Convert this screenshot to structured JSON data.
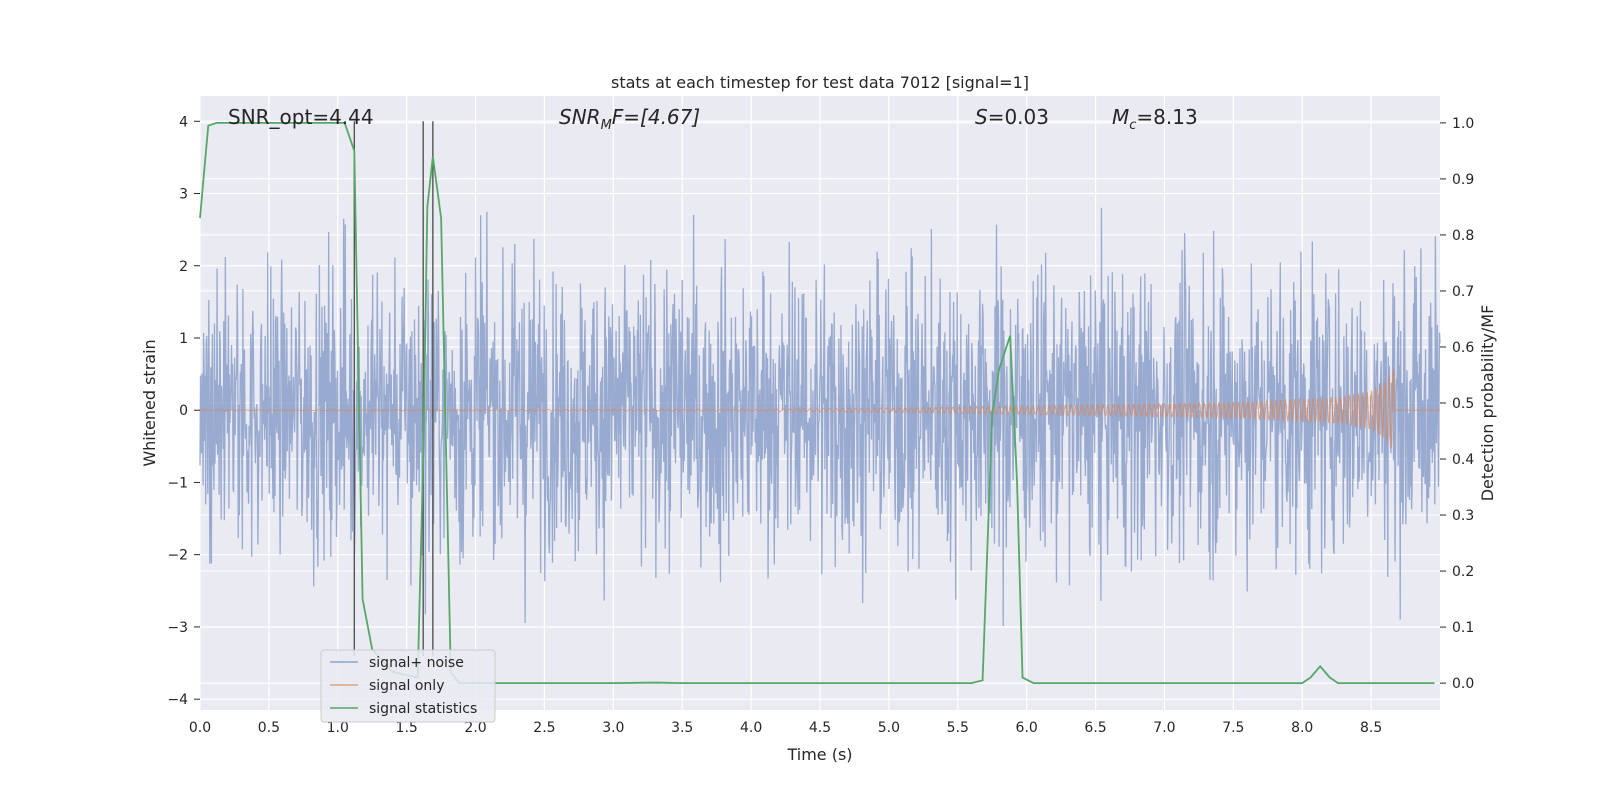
{
  "chart_data": {
    "type": "line",
    "title": "stats at each timestep for test data 7012 [signal=1]",
    "xlabel": "Time (s)",
    "ylabel_left": "Whitened strain",
    "ylabel_right": "Detection probability/MF",
    "xlim": [
      0.0,
      9.0
    ],
    "ylim_left": [
      -4.15,
      4.35
    ],
    "ylim_right": [
      -0.048,
      1.048
    ],
    "x_ticks": [
      "0.0",
      "0.5",
      "1.0",
      "1.5",
      "2.0",
      "2.5",
      "3.0",
      "3.5",
      "4.0",
      "4.5",
      "5.0",
      "5.5",
      "6.0",
      "6.5",
      "7.0",
      "7.5",
      "8.0",
      "8.5"
    ],
    "y_ticks_left": [
      "4",
      "3",
      "2",
      "1",
      "0",
      "−1",
      "−2",
      "−3",
      "−4"
    ],
    "y_ticks_right": [
      "1.0",
      "0.9",
      "0.8",
      "0.7",
      "0.6",
      "0.5",
      "0.4",
      "0.3",
      "0.2",
      "0.1",
      "0.0"
    ],
    "grid": true,
    "legend_placement": "lower-left",
    "annotations": {
      "snr_opt": "SNR_opt=4.44",
      "snr_mf_sym": "SNR",
      "snr_mf_sub": "M",
      "snr_mf_rest": "F=[4.67]",
      "s_sym": "S",
      "s_rest": "=0.03",
      "mc_sym": "M",
      "mc_sub": "c",
      "mc_rest": "=8.13"
    },
    "vlines": [
      1.12,
      1.62,
      1.69
    ],
    "vline_range": [
      -3.4,
      4.0
    ],
    "series": [
      {
        "name": "signal+ noise",
        "color": "#8fa3cc",
        "axis": "left",
        "style": "noise",
        "x_range": [
          0.0,
          9.0
        ],
        "std": 1.0
      },
      {
        "name": "signal only",
        "color": "#dd8452",
        "axis": "left",
        "style": "chirp",
        "x_range": [
          0.0,
          8.67
        ],
        "envelope": {
          "x": [
            0,
            4.0,
            5.0,
            6.0,
            7.0,
            7.5,
            8.0,
            8.3,
            8.5,
            8.6,
            8.67
          ],
          "y": [
            0.002,
            0.01,
            0.03,
            0.06,
            0.09,
            0.11,
            0.15,
            0.19,
            0.27,
            0.4,
            0.6
          ]
        }
      },
      {
        "name": "signal statistics",
        "color": "#55a868",
        "axis": "right",
        "style": "line",
        "x": [
          0.0,
          0.06,
          0.12,
          0.5,
          1.0,
          1.05,
          1.12,
          1.18,
          1.25,
          1.4,
          1.58,
          1.62,
          1.65,
          1.69,
          1.75,
          1.82,
          1.88,
          2.0,
          3.0,
          3.3,
          3.5,
          4.0,
          5.0,
          5.6,
          5.68,
          5.75,
          5.8,
          5.88,
          5.93,
          5.97,
          6.05,
          7.0,
          8.0,
          8.06,
          8.13,
          8.2,
          8.26,
          8.5,
          8.96
        ],
        "y": [
          0.83,
          0.995,
          1.0,
          1.0,
          1.0,
          1.0,
          0.95,
          0.15,
          0.06,
          0.02,
          0.01,
          0.4,
          0.85,
          0.94,
          0.83,
          0.02,
          0.0,
          0.0,
          0.0,
          0.001,
          0.0,
          0.0,
          0.0,
          0.0,
          0.005,
          0.48,
          0.56,
          0.62,
          0.36,
          0.01,
          0.0,
          0.0,
          0.0,
          0.01,
          0.03,
          0.01,
          0.0,
          0.0,
          0.0
        ]
      }
    ]
  }
}
